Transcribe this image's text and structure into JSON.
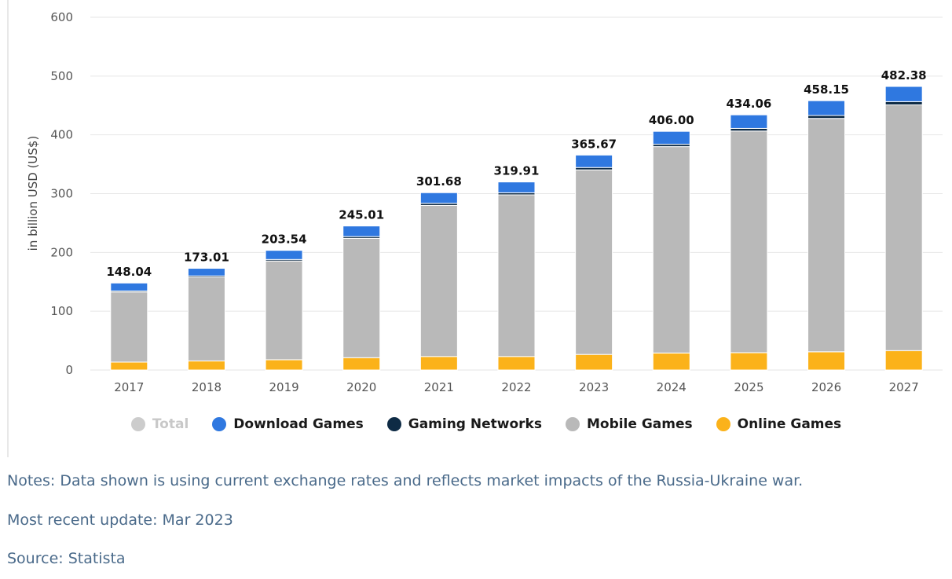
{
  "chart_data": {
    "type": "bar",
    "stacked": true,
    "categories": [
      "2017",
      "2018",
      "2019",
      "2020",
      "2021",
      "2022",
      "2023",
      "2024",
      "2025",
      "2026",
      "2027"
    ],
    "ylabel": "in billion USD (US$)",
    "ylim": [
      0,
      600
    ],
    "yticks": [
      0,
      100,
      200,
      300,
      400,
      500,
      600
    ],
    "grid": true,
    "legend_position": "bottom",
    "totals": [
      148.04,
      173.01,
      203.54,
      245.01,
      301.68,
      319.91,
      365.67,
      406.0,
      434.06,
      458.15,
      482.38
    ],
    "total_labels": [
      "148.04",
      "173.01",
      "203.54",
      "245.01",
      "301.68",
      "319.91",
      "365.67",
      "406.00",
      "434.06",
      "458.15",
      "482.38"
    ],
    "series": [
      {
        "name": "Online Games",
        "color": "#fbb21a",
        "values": [
          13.5,
          15.5,
          17.5,
          21,
          23,
          23,
          26.5,
          29,
          29.5,
          31,
          33
        ]
      },
      {
        "name": "Mobile Games",
        "color": "#b9b9b9",
        "values": [
          119,
          142,
          168,
          203,
          257,
          275,
          314,
          351,
          377,
          397,
          418
        ]
      },
      {
        "name": "Gaming Networks",
        "color": "#0e2b45",
        "values": [
          2,
          2.5,
          2.5,
          3,
          3.5,
          3.5,
          4,
          4,
          4.5,
          5,
          5.5
        ]
      },
      {
        "name": "Download Games",
        "color": "#2f78e0",
        "values": [
          13.54,
          13.01,
          15.54,
          18.01,
          18.18,
          18.41,
          21.17,
          22.0,
          23.06,
          25.15,
          25.88
        ]
      }
    ],
    "legend": [
      {
        "name": "Total",
        "color": "#cccccc",
        "muted": true
      },
      {
        "name": "Download Games",
        "color": "#2f78e0",
        "muted": false
      },
      {
        "name": "Gaming Networks",
        "color": "#0e2b45",
        "muted": false
      },
      {
        "name": "Mobile Games",
        "color": "#b9b9b9",
        "muted": false
      },
      {
        "name": "Online Games",
        "color": "#fbb21a",
        "muted": false
      }
    ]
  },
  "notes": "Notes: Data shown is using current exchange rates and reflects market impacts of the Russia-Ukraine war.",
  "update": "Most recent update: Mar 2023",
  "source": "Source: Statista"
}
